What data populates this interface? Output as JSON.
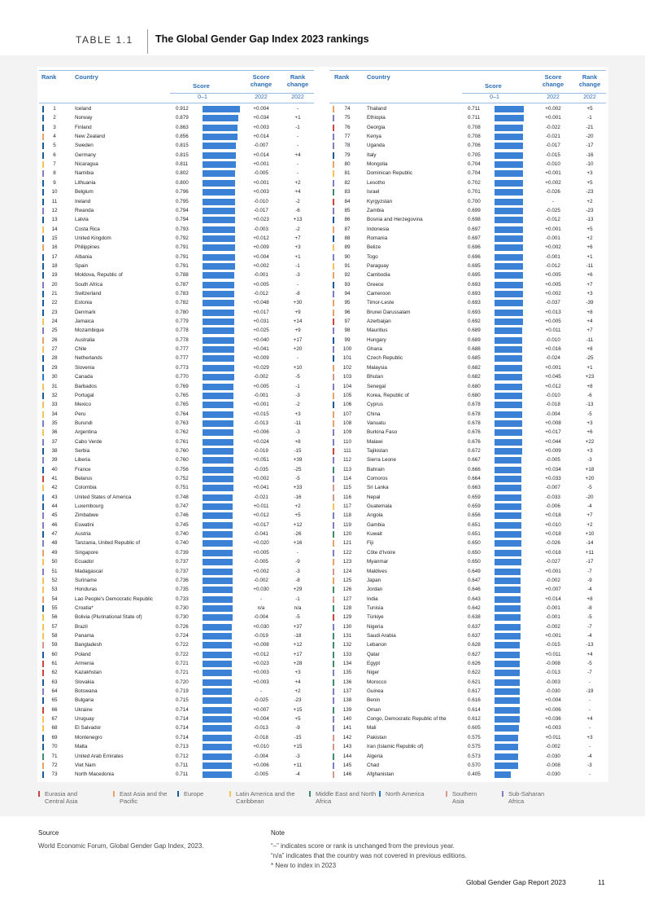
{
  "header": {
    "label": "TABLE 1.1",
    "title": "The Global Gender Gap Index 2023 rankings"
  },
  "table": {
    "columns": [
      "Rank",
      "Country",
      "Score",
      "Score change",
      "Rank change"
    ],
    "subheaders": [
      "0–1",
      "2022",
      "2022"
    ],
    "rows": [
      [
        1,
        "Iceland",
        "0.912",
        "+0.004",
        "-",
        2
      ],
      [
        2,
        "Norway",
        "0.879",
        "+0.034",
        "+1",
        2
      ],
      [
        3,
        "Finland",
        "0.863",
        "+0.003",
        "-1",
        2
      ],
      [
        4,
        "New Zealand",
        "0.856",
        "+0.014",
        "-",
        1
      ],
      [
        5,
        "Sweden",
        "0.815",
        "-0.007",
        "-",
        2
      ],
      [
        6,
        "Germany",
        "0.815",
        "+0.014",
        "+4",
        2
      ],
      [
        7,
        "Nicaragua",
        "0.811",
        "+0.001",
        "-",
        3
      ],
      [
        8,
        "Namibia",
        "0.802",
        "-0.005",
        "-",
        7
      ],
      [
        9,
        "Lithuania",
        "0.800",
        "+0.001",
        "+2",
        2
      ],
      [
        10,
        "Belgium",
        "0.796",
        "+0.003",
        "+4",
        2
      ],
      [
        11,
        "Ireland",
        "0.795",
        "-0.010",
        "-2",
        2
      ],
      [
        12,
        "Rwanda",
        "0.794",
        "-0.017",
        "-6",
        7
      ],
      [
        13,
        "Latvia",
        "0.794",
        "+0.023",
        "+13",
        2
      ],
      [
        14,
        "Costa Rica",
        "0.793",
        "-0.003",
        "-2",
        3
      ],
      [
        15,
        "United Kingdom",
        "0.792",
        "+0.012",
        "+7",
        2
      ],
      [
        16,
        "Philippines",
        "0.791",
        "+0.009",
        "+3",
        1
      ],
      [
        17,
        "Albania",
        "0.791",
        "+0.004",
        "+1",
        2
      ],
      [
        18,
        "Spain",
        "0.791",
        "+0.002",
        "-1",
        2
      ],
      [
        19,
        "Moldova, Republic of",
        "0.788",
        "-0.001",
        "-3",
        2
      ],
      [
        20,
        "South Africa",
        "0.787",
        "+0.005",
        "-",
        7
      ],
      [
        21,
        "Switzerland",
        "0.783",
        "-0.012",
        "-8",
        2
      ],
      [
        22,
        "Estonia",
        "0.782",
        "+0.048",
        "+30",
        2
      ],
      [
        23,
        "Denmark",
        "0.780",
        "+0.017",
        "+9",
        2
      ],
      [
        24,
        "Jamaica",
        "0.779",
        "+0.031",
        "+14",
        3
      ],
      [
        25,
        "Mozambique",
        "0.778",
        "+0.025",
        "+9",
        7
      ],
      [
        26,
        "Australia",
        "0.778",
        "+0.040",
        "+17",
        1
      ],
      [
        27,
        "Chile",
        "0.777",
        "+0.041",
        "+20",
        3
      ],
      [
        28,
        "Netherlands",
        "0.777",
        "+0.009",
        "-",
        2
      ],
      [
        29,
        "Slovenia",
        "0.773",
        "+0.029",
        "+10",
        2
      ],
      [
        30,
        "Canada",
        "0.770",
        "-0.002",
        "-5",
        5
      ],
      [
        31,
        "Barbados",
        "0.769",
        "+0.005",
        "-1",
        3
      ],
      [
        32,
        "Portugal",
        "0.765",
        "-0.001",
        "-3",
        2
      ],
      [
        33,
        "Mexico",
        "0.765",
        "+0.001",
        "-2",
        3
      ],
      [
        34,
        "Peru",
        "0.764",
        "+0.015",
        "+3",
        3
      ],
      [
        35,
        "Burundi",
        "0.763",
        "-0.013",
        "-11",
        7
      ],
      [
        36,
        "Argentina",
        "0.762",
        "+0.006",
        "-3",
        3
      ],
      [
        37,
        "Cabo Verde",
        "0.761",
        "+0.024",
        "+8",
        7
      ],
      [
        38,
        "Serbia",
        "0.760",
        "-0.019",
        "-15",
        2
      ],
      [
        39,
        "Liberia",
        "0.760",
        "+0.051",
        "+39",
        7
      ],
      [
        40,
        "France",
        "0.756",
        "-0.035",
        "-25",
        2
      ],
      [
        41,
        "Belarus",
        "0.752",
        "+0.002",
        "-5",
        0
      ],
      [
        42,
        "Colombia",
        "0.751",
        "+0.041",
        "+33",
        3
      ],
      [
        43,
        "United States of America",
        "0.748",
        "-0.021",
        "-16",
        5
      ],
      [
        44,
        "Luxembourg",
        "0.747",
        "+0.011",
        "+2",
        2
      ],
      [
        45,
        "Zimbabwe",
        "0.746",
        "+0.012",
        "+5",
        7
      ],
      [
        46,
        "Eswatini",
        "0.745",
        "+0.017",
        "+12",
        7
      ],
      [
        47,
        "Austria",
        "0.740",
        "-0.041",
        "-26",
        2
      ],
      [
        48,
        "Tanzania, United Republic of",
        "0.740",
        "+0.020",
        "+16",
        7
      ],
      [
        49,
        "Singapore",
        "0.739",
        "+0.005",
        "-",
        1
      ],
      [
        50,
        "Ecuador",
        "0.737",
        "-0.005",
        "-9",
        3
      ],
      [
        51,
        "Madagascar",
        "0.737",
        "+0.002",
        "-3",
        7
      ],
      [
        52,
        "Suriname",
        "0.736",
        "-0.002",
        "-8",
        3
      ],
      [
        53,
        "Honduras",
        "0.735",
        "+0.030",
        "+29",
        3
      ],
      [
        54,
        "Lao People's Democratic Republic",
        "0.733",
        "-",
        "-1",
        1
      ],
      [
        55,
        "Croatia*",
        "0.730",
        "n/a",
        "n/a",
        2
      ],
      [
        56,
        "Bolivia (Plurinational State of)",
        "0.730",
        "-0.004",
        "-5",
        3
      ],
      [
        57,
        "Brazil",
        "0.726",
        "+0.030",
        "+37",
        3
      ],
      [
        58,
        "Panama",
        "0.724",
        "-0.019",
        "-18",
        3
      ],
      [
        59,
        "Bangladesh",
        "0.722",
        "+0.008",
        "+12",
        6
      ],
      [
        60,
        "Poland",
        "0.722",
        "+0.012",
        "+17",
        2
      ],
      [
        61,
        "Armenia",
        "0.721",
        "+0.023",
        "+28",
        0
      ],
      [
        62,
        "Kazakhstan",
        "0.721",
        "+0.003",
        "+3",
        0
      ],
      [
        63,
        "Slovakia",
        "0.720",
        "+0.003",
        "+4",
        2
      ],
      [
        64,
        "Botswana",
        "0.719",
        "-",
        "+2",
        7
      ],
      [
        65,
        "Bulgaria",
        "0.715",
        "-0.025",
        "-23",
        2
      ],
      [
        66,
        "Ukraine",
        "0.714",
        "+0.007",
        "+15",
        0
      ],
      [
        67,
        "Uruguay",
        "0.714",
        "+0.004",
        "+5",
        3
      ],
      [
        68,
        "El Salvador",
        "0.714",
        "-0.013",
        "-9",
        3
      ],
      [
        69,
        "Montenegro",
        "0.714",
        "-0.018",
        "-15",
        2
      ],
      [
        70,
        "Malta",
        "0.713",
        "+0.010",
        "+15",
        2
      ],
      [
        71,
        "United Arab Emirates",
        "0.712",
        "-0.004",
        "-3",
        4
      ],
      [
        72,
        "Viet Nam",
        "0.711",
        "+0.006",
        "+11",
        1
      ],
      [
        73,
        "North Macedonia",
        "0.711",
        "-0.005",
        "-4",
        2
      ],
      [
        74,
        "Thailand",
        "0.711",
        "+0.002",
        "+5",
        1
      ],
      [
        75,
        "Ethiopia",
        "0.711",
        "+0.001",
        "-1",
        7
      ],
      [
        76,
        "Georgia",
        "0.708",
        "-0.022",
        "-21",
        0
      ],
      [
        77,
        "Kenya",
        "0.708",
        "-0.021",
        "-20",
        7
      ],
      [
        78,
        "Uganda",
        "0.706",
        "-0.017",
        "-17",
        7
      ],
      [
        79,
        "Italy",
        "0.705",
        "-0.015",
        "-16",
        2
      ],
      [
        80,
        "Mongolia",
        "0.704",
        "-0.010",
        "-10",
        1
      ],
      [
        81,
        "Dominican Republic",
        "0.704",
        "+0.001",
        "+3",
        3
      ],
      [
        82,
        "Lesotho",
        "0.702",
        "+0.002",
        "+5",
        7
      ],
      [
        83,
        "Israel",
        "0.701",
        "-0.026",
        "-23",
        4
      ],
      [
        84,
        "Kyrgyzstan",
        "0.700",
        "-",
        "+2",
        0
      ],
      [
        85,
        "Zambia",
        "0.699",
        "-0.025",
        "-23",
        7
      ],
      [
        86,
        "Bosnia and Herzegovina",
        "0.698",
        "-0.012",
        "-13",
        2
      ],
      [
        87,
        "Indonesia",
        "0.697",
        "+0.001",
        "+5",
        1
      ],
      [
        88,
        "Romania",
        "0.697",
        "-0.001",
        "+2",
        2
      ],
      [
        89,
        "Belize",
        "0.696",
        "+0.002",
        "+6",
        3
      ],
      [
        90,
        "Togo",
        "0.696",
        "-0.001",
        "+1",
        7
      ],
      [
        91,
        "Paraguay",
        "0.695",
        "-0.012",
        "-11",
        3
      ],
      [
        92,
        "Cambodia",
        "0.695",
        "+0.005",
        "+6",
        1
      ],
      [
        93,
        "Greece",
        "0.693",
        "+0.005",
        "+7",
        2
      ],
      [
        94,
        "Cameroon",
        "0.693",
        "+0.002",
        "+3",
        7
      ],
      [
        95,
        "Timor-Leste",
        "0.693",
        "-0.037",
        "-39",
        1
      ],
      [
        96,
        "Brunei Darussalam",
        "0.693",
        "+0.013",
        "+8",
        1
      ],
      [
        97,
        "Azerbaijan",
        "0.692",
        "+0.005",
        "+4",
        0
      ],
      [
        98,
        "Mauritius",
        "0.689",
        "+0.011",
        "+7",
        7
      ],
      [
        99,
        "Hungary",
        "0.689",
        "-0.010",
        "-11",
        2
      ],
      [
        100,
        "Ghana",
        "0.688",
        "+0.016",
        "+8",
        7
      ],
      [
        101,
        "Czech Republic",
        "0.685",
        "-0.024",
        "-25",
        2
      ],
      [
        102,
        "Malaysia",
        "0.682",
        "+0.001",
        "+1",
        1
      ],
      [
        103,
        "Bhutan",
        "0.682",
        "+0.045",
        "+23",
        6
      ],
      [
        104,
        "Senegal",
        "0.680",
        "+0.012",
        "+8",
        7
      ],
      [
        105,
        "Korea, Republic of",
        "0.680",
        "-0.010",
        "-6",
        1
      ],
      [
        106,
        "Cyprus",
        "0.678",
        "-0.018",
        "-13",
        2
      ],
      [
        107,
        "China",
        "0.678",
        "-0.004",
        "-5",
        1
      ],
      [
        108,
        "Vanuatu",
        "0.678",
        "+0.008",
        "+3",
        1
      ],
      [
        109,
        "Burkina Faso",
        "0.676",
        "+0.017",
        "+6",
        7
      ],
      [
        110,
        "Malawi",
        "0.676",
        "+0.044",
        "+22",
        7
      ],
      [
        111,
        "Tajikistan",
        "0.672",
        "+0.009",
        "+3",
        0
      ],
      [
        112,
        "Sierra Leone",
        "0.667",
        "-0.005",
        "-3",
        7
      ],
      [
        113,
        "Bahrain",
        "0.666",
        "+0.034",
        "+18",
        4
      ],
      [
        114,
        "Comoros",
        "0.664",
        "+0.033",
        "+20",
        7
      ],
      [
        115,
        "Sri Lanka",
        "0.663",
        "-0.007",
        "-5",
        6
      ],
      [
        116,
        "Nepal",
        "0.659",
        "-0.033",
        "-20",
        6
      ],
      [
        117,
        "Guatemala",
        "0.659",
        "-0.006",
        "-4",
        3
      ],
      [
        118,
        "Angola",
        "0.656",
        "+0.018",
        "+7",
        7
      ],
      [
        119,
        "Gambia",
        "0.651",
        "+0.010",
        "+2",
        7
      ],
      [
        120,
        "Kuwait",
        "0.651",
        "+0.018",
        "+10",
        4
      ],
      [
        121,
        "Fiji",
        "0.650",
        "-0.026",
        "-14",
        1
      ],
      [
        122,
        "Côte d'Ivoire",
        "0.650",
        "+0.018",
        "+11",
        7
      ],
      [
        123,
        "Myanmar",
        "0.650",
        "-0.027",
        "-17",
        1
      ],
      [
        124,
        "Maldives",
        "0.649",
        "+0.001",
        "-7",
        6
      ],
      [
        125,
        "Japan",
        "0.647",
        "-0.002",
        "-9",
        1
      ],
      [
        126,
        "Jordan",
        "0.646",
        "+0.007",
        "-4",
        4
      ],
      [
        127,
        "India",
        "0.643",
        "+0.014",
        "+8",
        6
      ],
      [
        128,
        "Tunisia",
        "0.642",
        "-0.001",
        "-8",
        4
      ],
      [
        129,
        "Türkiye",
        "0.638",
        "-0.001",
        "-5",
        0
      ],
      [
        130,
        "Nigeria",
        "0.637",
        "-0.002",
        "-7",
        7
      ],
      [
        131,
        "Saudi Arabia",
        "0.637",
        "+0.001",
        "-4",
        4
      ],
      [
        132,
        "Lebanon",
        "0.628",
        "-0.015",
        "-13",
        4
      ],
      [
        133,
        "Qatar",
        "0.627",
        "+0.011",
        "+4",
        4
      ],
      [
        134,
        "Egypt",
        "0.626",
        "-0.008",
        "-5",
        4
      ],
      [
        135,
        "Niger",
        "0.622",
        "-0.013",
        "-7",
        7
      ],
      [
        136,
        "Morocco",
        "0.621",
        "-0.003",
        "-",
        4
      ],
      [
        137,
        "Guinea",
        "0.617",
        "-0.030",
        "-19",
        7
      ],
      [
        138,
        "Benin",
        "0.616",
        "+0.004",
        "-",
        7
      ],
      [
        139,
        "Oman",
        "0.614",
        "+0.006",
        "-",
        4
      ],
      [
        140,
        "Congo, Democratic Republic of the",
        "0.612",
        "+0.036",
        "+4",
        7
      ],
      [
        141,
        "Mali",
        "0.605",
        "+0.003",
        "-",
        7
      ],
      [
        142,
        "Pakistan",
        "0.575",
        "+0.011",
        "+3",
        6
      ],
      [
        143,
        "Iran (Islamic Republic of)",
        "0.575",
        "-0.002",
        "-",
        6
      ],
      [
        144,
        "Algeria",
        "0.573",
        "-0.030",
        "-4",
        4
      ],
      [
        145,
        "Chad",
        "0.570",
        "-0.008",
        "-3",
        7
      ],
      [
        146,
        "Afghanistan",
        "0.405",
        "-0.030",
        "-",
        6
      ]
    ],
    "bar_color": "#3b82d6"
  },
  "legend": [
    {
      "name": "Eurasia and Central Asia",
      "color": "#c8463c"
    },
    {
      "name": "East Asia and the Pacific",
      "color": "#e6a267"
    },
    {
      "name": "Europe",
      "color": "#1a5a96"
    },
    {
      "name": "Latin America and the Caribbean",
      "color": "#f0c45a"
    },
    {
      "name": "Middle East and North Africa",
      "color": "#3f8c6c"
    },
    {
      "name": "North America",
      "color": "#2b77c0"
    },
    {
      "name": "Southern Asia",
      "color": "#d4998a"
    },
    {
      "name": "Sub-Saharan Africa",
      "color": "#7f7fbf"
    }
  ],
  "source": {
    "heading": "Source",
    "text": "World Economic Forum, Global Gender Gap Index, 2023."
  },
  "note": {
    "heading": "Note",
    "lines": [
      "“–” indicates score or rank is unchanged from the previous year.",
      "“n/a” indicates that the country was not covered in previous editions.",
      "* New to index in 2023"
    ]
  },
  "footer": {
    "title": "Global Gender Gap Report 2023",
    "page": "11"
  }
}
